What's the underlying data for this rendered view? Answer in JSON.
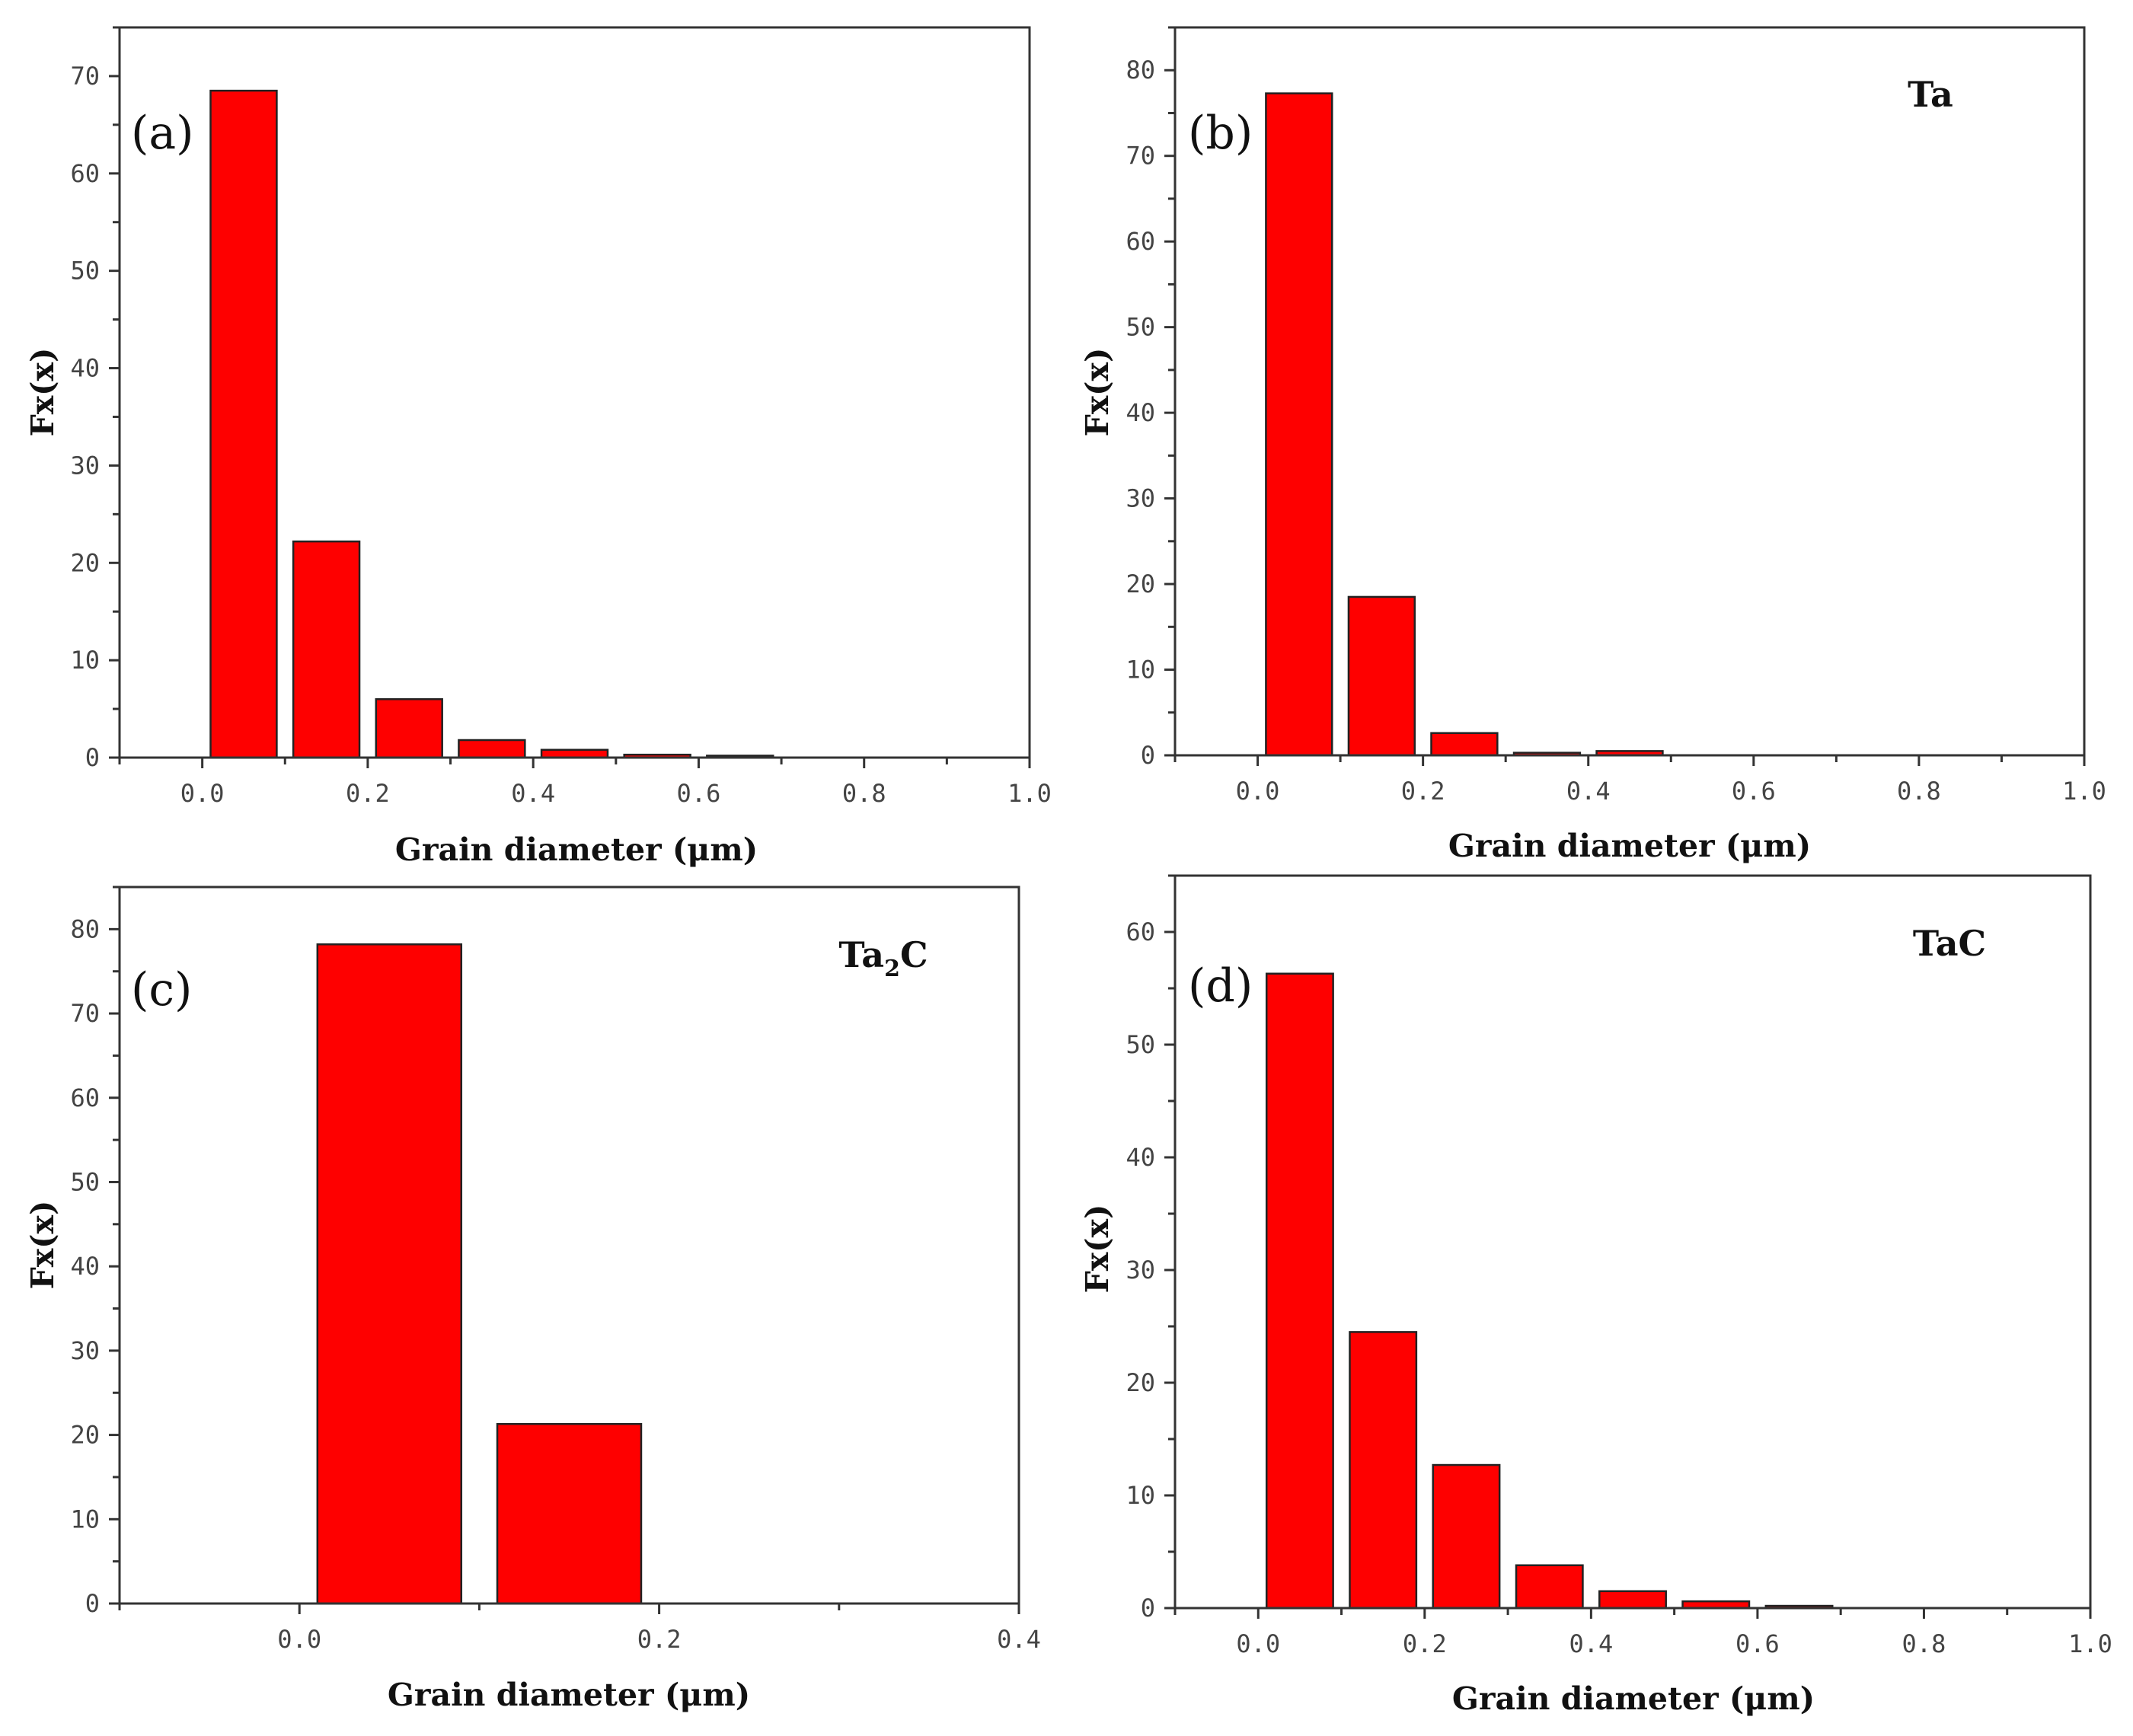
{
  "chart_data": [
    {
      "type": "bar",
      "panel_label": "(a)",
      "series_label": "",
      "xlabel": "Grain diameter (μm)",
      "ylabel": "Fx(x)",
      "xlim": [
        -0.1,
        1.0
      ],
      "ylim": [
        0,
        75
      ],
      "x_ticks": [
        0.0,
        0.2,
        0.4,
        0.6,
        0.8,
        1.0
      ],
      "x_tick_labels": [
        "0.0",
        "0.2",
        "0.4",
        "0.6",
        "0.8",
        "1.0"
      ],
      "y_ticks": [
        0,
        10,
        20,
        30,
        40,
        50,
        60,
        70
      ],
      "y_tick_labels": [
        "0",
        "10",
        "20",
        "30",
        "40",
        "50",
        "60",
        "70"
      ],
      "bin_width": 0.08,
      "x": [
        0.05,
        0.15,
        0.25,
        0.35,
        0.45,
        0.55,
        0.65
      ],
      "values": [
        68.5,
        22.2,
        6.0,
        1.8,
        0.8,
        0.3,
        0.2
      ],
      "bar_color": "#fe0000"
    },
    {
      "type": "bar",
      "panel_label": "(b)",
      "series_label": "Ta",
      "xlabel": "Grain diameter (μm)",
      "ylabel": "Fx(x)",
      "xlim": [
        -0.1,
        1.0
      ],
      "ylim": [
        0,
        85
      ],
      "x_ticks": [
        0.0,
        0.2,
        0.4,
        0.6,
        0.8,
        1.0
      ],
      "x_tick_labels": [
        "0.0",
        "0.2",
        "0.4",
        "0.6",
        "0.8",
        "1.0"
      ],
      "y_ticks": [
        0,
        10,
        20,
        30,
        40,
        50,
        60,
        70,
        80
      ],
      "y_tick_labels": [
        "0",
        "10",
        "20",
        "30",
        "40",
        "50",
        "60",
        "70",
        "80"
      ],
      "bin_width": 0.08,
      "x": [
        0.05,
        0.15,
        0.25,
        0.35,
        0.45
      ],
      "values": [
        77.3,
        18.5,
        2.6,
        0.3,
        0.5
      ],
      "bar_color": "#fe0000"
    },
    {
      "type": "bar",
      "panel_label": "(c)",
      "series_label": "Ta",
      "series_label_sub": "2",
      "series_label_tail": "C",
      "xlabel": "Grain diameter (μm)",
      "ylabel": "Fx(x)",
      "xlim": [
        -0.1,
        0.4
      ],
      "ylim": [
        0,
        85
      ],
      "x_ticks": [
        0.0,
        0.2,
        0.4
      ],
      "x_tick_labels": [
        "0.0",
        "0.2",
        "0.4"
      ],
      "y_ticks": [
        0,
        10,
        20,
        30,
        40,
        50,
        60,
        70,
        80
      ],
      "y_tick_labels": [
        "0",
        "10",
        "20",
        "30",
        "40",
        "50",
        "60",
        "70",
        "80"
      ],
      "bin_width": 0.08,
      "x": [
        0.05,
        0.15
      ],
      "values": [
        78.2,
        21.3
      ],
      "bar_color": "#fe0000"
    },
    {
      "type": "bar",
      "panel_label": "(d)",
      "series_label": "TaC",
      "xlabel": "Grain diameter (μm)",
      "ylabel": "Fx(x)",
      "xlim": [
        -0.1,
        1.0
      ],
      "ylim": [
        0,
        65
      ],
      "x_ticks": [
        0.0,
        0.2,
        0.4,
        0.6,
        0.8,
        1.0
      ],
      "x_tick_labels": [
        "0.0",
        "0.2",
        "0.4",
        "0.6",
        "0.8",
        "1.0"
      ],
      "y_ticks": [
        0,
        10,
        20,
        30,
        40,
        50,
        60
      ],
      "y_tick_labels": [
        "0",
        "10",
        "20",
        "30",
        "40",
        "50",
        "60"
      ],
      "bin_width": 0.08,
      "x": [
        0.05,
        0.15,
        0.25,
        0.35,
        0.45,
        0.55,
        0.65
      ],
      "values": [
        56.3,
        24.5,
        12.7,
        3.8,
        1.5,
        0.6,
        0.2
      ],
      "bar_color": "#fe0000"
    }
  ]
}
